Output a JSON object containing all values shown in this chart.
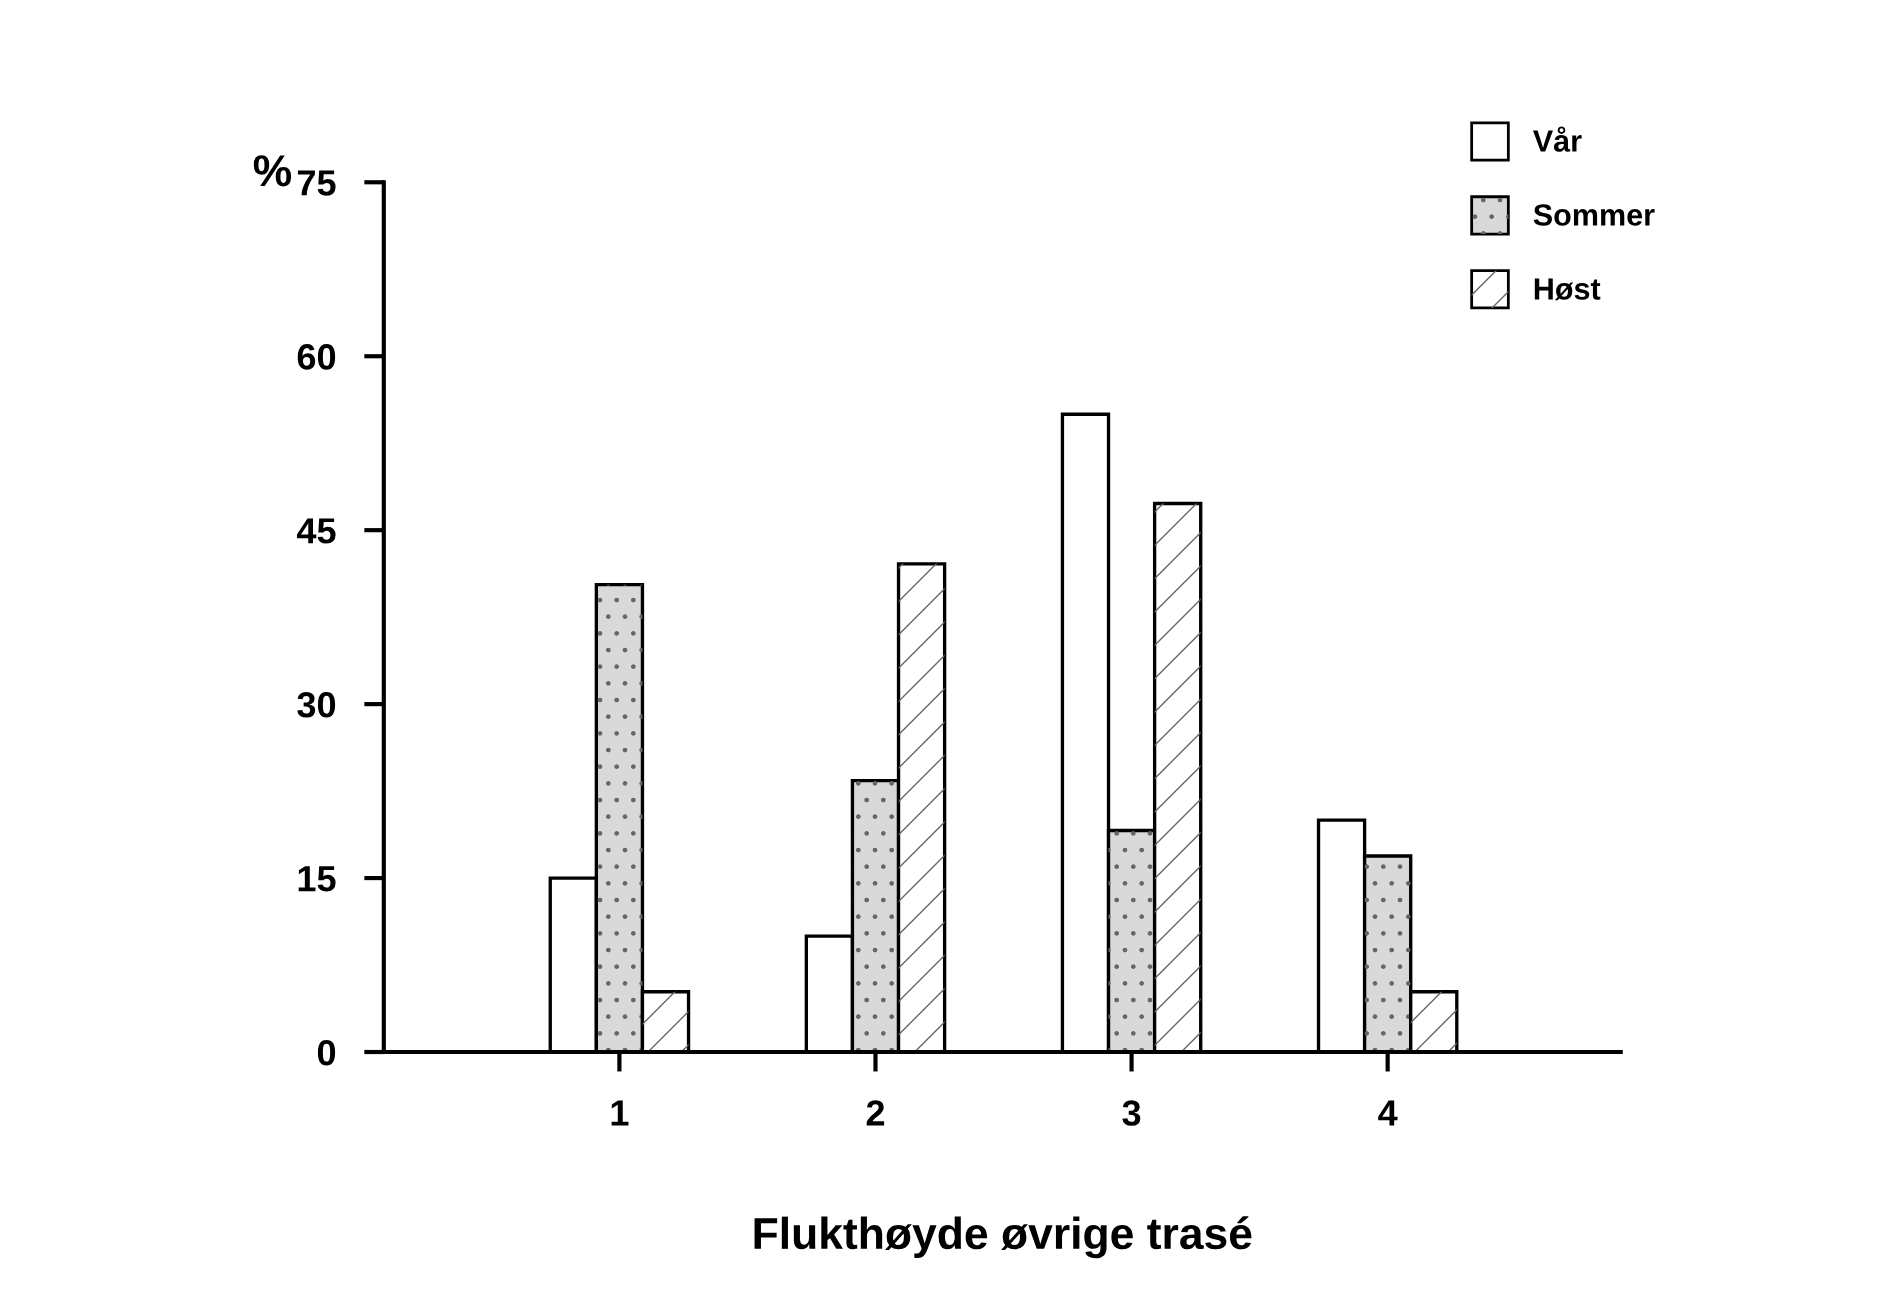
{
  "chart_data": {
    "type": "bar",
    "xlabel": "Flukthøyde øvrige trasé",
    "ylabel": "%",
    "categories": [
      "1",
      "2",
      "3",
      "4"
    ],
    "series": [
      {
        "name": "Vår",
        "color": "#ffffff",
        "values": [
          15,
          10,
          55,
          20
        ]
      },
      {
        "name": "Sommer",
        "color": "#d9d9d9",
        "values": [
          40.3,
          23.4,
          19.1,
          16.9
        ]
      },
      {
        "name": "Høst",
        "color": "#ffffff",
        "values": [
          5.2,
          42.1,
          47.3,
          5.2
        ]
      }
    ],
    "ylim": [
      0,
      75
    ],
    "yticks": [
      0,
      15,
      30,
      45,
      60,
      75
    ],
    "grid": false,
    "legend": "top right"
  }
}
